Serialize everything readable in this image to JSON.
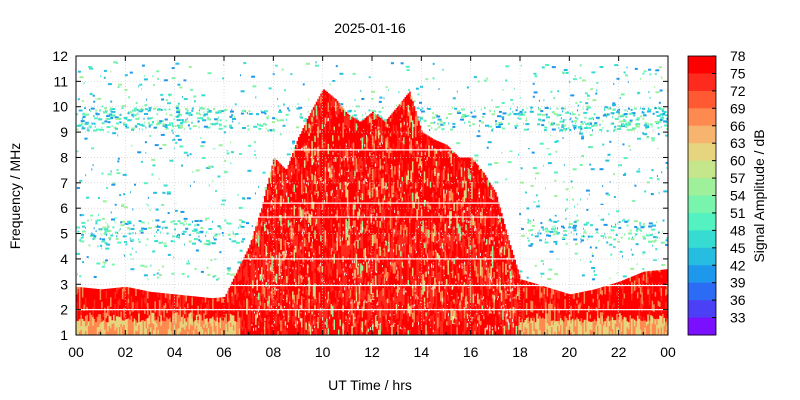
{
  "chart_data": {
    "type": "heatmap",
    "title": "2025-01-16",
    "xlabel": "UT Time / hrs",
    "ylabel": "Frequency / MHz",
    "colorbar_label": "Signal Amplitude / dB",
    "xlim": [
      0,
      24
    ],
    "ylim": [
      1,
      12
    ],
    "x_tick_labels": [
      "00",
      "02",
      "04",
      "06",
      "08",
      "10",
      "12",
      "14",
      "16",
      "18",
      "20",
      "22",
      "00"
    ],
    "y_ticks": [
      1,
      2,
      3,
      4,
      5,
      6,
      7,
      8,
      9,
      10,
      11,
      12
    ],
    "colorbar_range": [
      33,
      78
    ],
    "colorbar_ticks": [
      78,
      75,
      72,
      69,
      66,
      63,
      60,
      57,
      54,
      51,
      48,
      45,
      42,
      39,
      36,
      33
    ],
    "colorbar_colors": [
      "#ff0000",
      "#ff2a1e",
      "#ff5a32",
      "#ff8a50",
      "#f7b46e",
      "#e6d47e",
      "#c6e68c",
      "#9ef09a",
      "#78f4ac",
      "#54f2c0",
      "#36dcd2",
      "#26bde0",
      "#1e98ec",
      "#2c6cf4",
      "#4c40f6",
      "#7a10ff"
    ],
    "grid": true,
    "legend": "colorbar-right",
    "upper_edge_profile_mhz": {
      "x": [
        0,
        1,
        2,
        3,
        4,
        5,
        5.5,
        6,
        6.5,
        7,
        7.5,
        8,
        8.5,
        9,
        9.5,
        10,
        10.5,
        11,
        11.5,
        12,
        12.5,
        13,
        13.5,
        14,
        14.5,
        15,
        15.5,
        16,
        16.5,
        17,
        17.5,
        18,
        19,
        20,
        21,
        22,
        23,
        24
      ],
      "y": [
        2.9,
        2.8,
        2.9,
        2.7,
        2.6,
        2.5,
        2.45,
        2.5,
        3.5,
        4.5,
        6.0,
        8.0,
        7.5,
        8.8,
        9.8,
        10.7,
        10.3,
        9.7,
        9.4,
        9.8,
        9.4,
        10.0,
        10.6,
        9.0,
        8.7,
        8.5,
        8.0,
        8.0,
        7.4,
        6.6,
        4.8,
        3.2,
        2.9,
        2.6,
        2.8,
        3.1,
        3.5,
        3.6
      ]
    }
  }
}
